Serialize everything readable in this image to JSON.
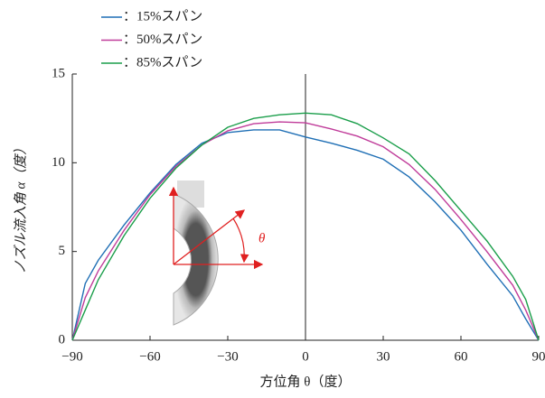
{
  "chart_data": {
    "type": "line",
    "x": [
      -90,
      -85,
      -80,
      -70,
      -60,
      -50,
      -40,
      -30,
      -20,
      -10,
      0,
      10,
      20,
      30,
      40,
      50,
      60,
      70,
      80,
      85,
      90
    ],
    "series": [
      {
        "name": "：15%スパン",
        "color": "#1f6fb5",
        "values": [
          0,
          3.2,
          4.5,
          6.5,
          8.3,
          9.9,
          11.1,
          11.7,
          11.85,
          11.85,
          11.45,
          11.1,
          10.7,
          10.2,
          9.2,
          7.8,
          6.2,
          4.3,
          2.5,
          1.2,
          0
        ]
      },
      {
        "name": "：50%スパン",
        "color": "#c03c9a",
        "values": [
          0,
          2.4,
          3.9,
          6.2,
          8.2,
          9.8,
          11.0,
          11.8,
          12.2,
          12.3,
          12.25,
          11.9,
          11.5,
          10.9,
          9.9,
          8.5,
          6.8,
          5.0,
          3.1,
          1.7,
          0
        ]
      },
      {
        "name": "：85%スパン",
        "color": "#1a9e4a",
        "values": [
          0,
          1.7,
          3.4,
          5.9,
          8.0,
          9.7,
          11.0,
          12.0,
          12.5,
          12.7,
          12.8,
          12.7,
          12.2,
          11.4,
          10.5,
          9.0,
          7.3,
          5.6,
          3.6,
          2.3,
          0
        ]
      }
    ],
    "xlabel": "方位角 θ（度）",
    "ylabel": "ノズル流入角 α（度）",
    "inset_label": "θ",
    "xlim": [
      -90,
      90
    ],
    "ylim": [
      0,
      15
    ],
    "xticks": [
      {
        "value": -90,
        "label": "−90"
      },
      {
        "value": -60,
        "label": "−60"
      },
      {
        "value": -30,
        "label": "−30"
      },
      0,
      30,
      60,
      90
    ],
    "yticks": [
      0,
      5,
      10,
      15
    ]
  }
}
